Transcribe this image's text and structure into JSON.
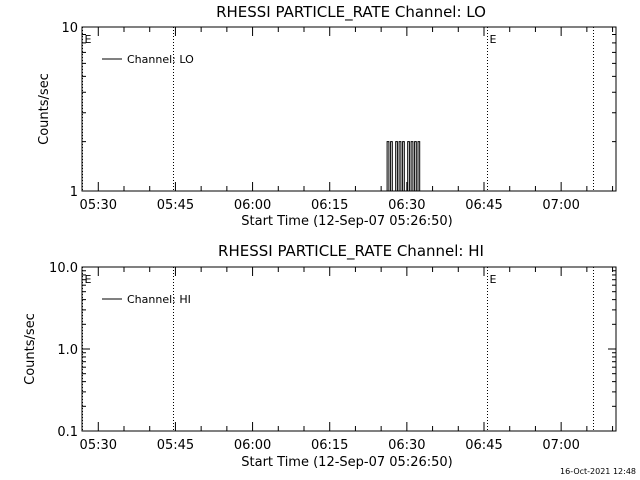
{
  "timestamp": "16-Oct-2021 12:48",
  "chart_data": [
    {
      "type": "line",
      "title": "RHESSI PARTICLE_RATE Channel: LO",
      "xlabel": "Start Time (12-Sep-07 05:26:50)",
      "ylabel": "Counts/sec",
      "yscale": "log",
      "ylim": [
        1,
        10
      ],
      "xlim": [
        "05:26:50",
        "07:10:40"
      ],
      "yticks": [
        "1",
        "10"
      ],
      "xticks": [
        "05:30",
        "05:45",
        "06:00",
        "06:15",
        "06:30",
        "06:45",
        "07:00"
      ],
      "legend": {
        "label": "Channel: LO",
        "placement": "top-left"
      },
      "markers": [
        {
          "time": "05:26:50",
          "label": "E"
        },
        {
          "time": "05:44:30"
        },
        {
          "time": "06:45:40",
          "label": "E"
        },
        {
          "time": "07:06:10"
        }
      ],
      "series": [
        {
          "x": [
            "06:25:50",
            "06:26:10",
            "06:26:30",
            "06:26:50",
            "06:27:10",
            "06:27:30",
            "06:27:50",
            "06:28:10",
            "06:28:30",
            "06:28:50",
            "06:29:10",
            "06:29:30",
            "06:29:50",
            "06:30:10",
            "06:30:30",
            "06:30:50",
            "06:31:10",
            "06:31:30",
            "06:31:50",
            "06:32:10",
            "06:32:30",
            "06:32:50"
          ],
          "y": [
            1,
            2,
            1,
            2,
            1,
            1,
            2,
            1,
            2,
            1,
            2,
            1,
            1,
            2,
            1,
            2,
            1,
            2,
            1,
            2,
            1,
            1
          ]
        }
      ]
    },
    {
      "type": "line",
      "title": "RHESSI PARTICLE_RATE Channel: HI",
      "xlabel": "Start Time (12-Sep-07 05:26:50)",
      "ylabel": "Counts/sec",
      "yscale": "log",
      "ylim": [
        0.1,
        10
      ],
      "xlim": [
        "05:26:50",
        "07:10:40"
      ],
      "yticks": [
        "0.1",
        "1.0",
        "10.0"
      ],
      "xticks": [
        "05:30",
        "05:45",
        "06:00",
        "06:15",
        "06:30",
        "06:45",
        "07:00"
      ],
      "legend": {
        "label": "Channel: HI",
        "placement": "top-left"
      },
      "markers": [
        {
          "time": "05:26:50",
          "label": "E"
        },
        {
          "time": "05:44:30"
        },
        {
          "time": "06:45:40",
          "label": "E"
        },
        {
          "time": "07:06:10"
        }
      ],
      "series": []
    }
  ]
}
